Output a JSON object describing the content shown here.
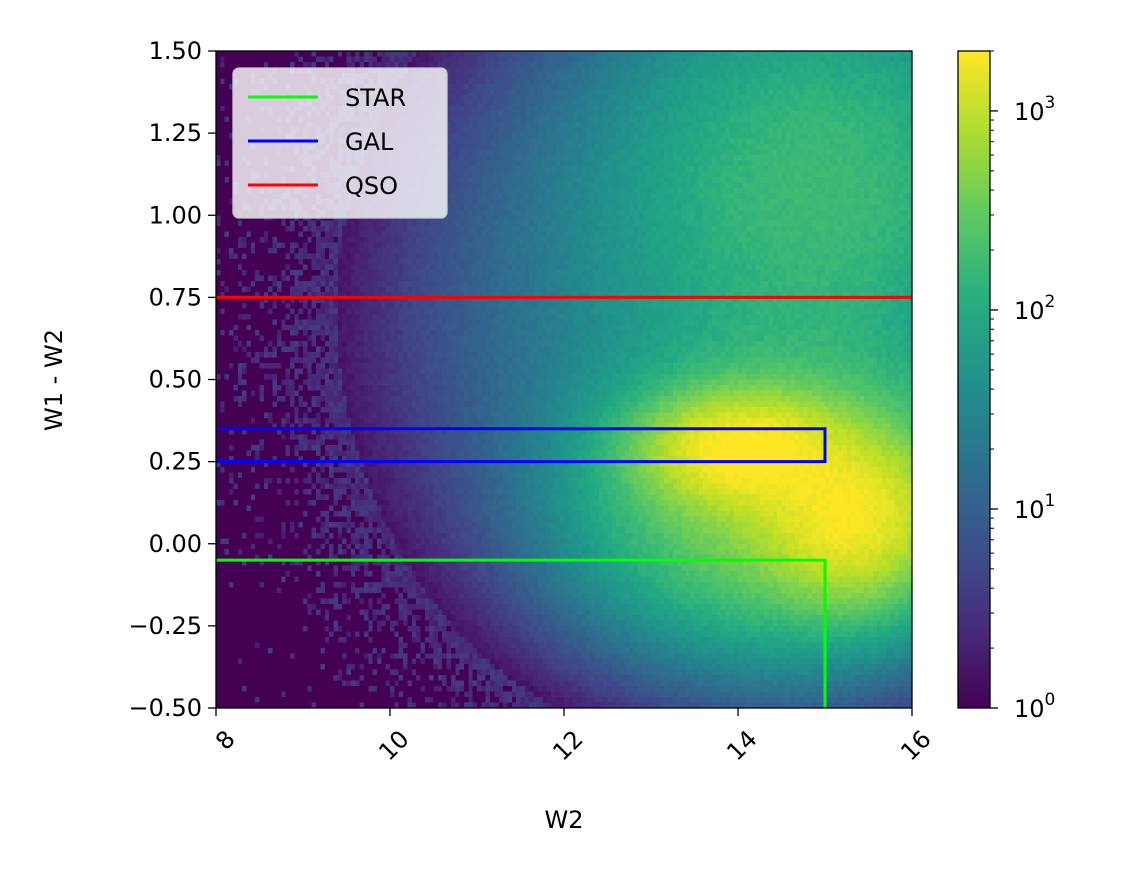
{
  "chart_data": {
    "type": "heatmap",
    "title": "",
    "xlabel": "W2",
    "ylabel": "W1 - W2",
    "xlim": [
      8,
      16
    ],
    "ylim": [
      -0.5,
      1.5
    ],
    "x_ticks": [
      8,
      10,
      12,
      14,
      16
    ],
    "y_ticks": [
      -0.5,
      -0.25,
      0.0,
      0.25,
      0.5,
      0.75,
      1.0,
      1.25,
      1.5
    ],
    "x_tick_labels": [
      "8",
      "10",
      "12",
      "14",
      "16"
    ],
    "y_tick_labels": [
      "−0.50",
      "−0.25",
      "0.00",
      "0.25",
      "0.50",
      "0.75",
      "1.00",
      "1.25",
      "1.50"
    ],
    "x_tick_rotation_deg": 45,
    "colormap": "viridis",
    "colorbar": {
      "scale": "log",
      "range": [
        1,
        2000
      ],
      "ticks": [
        1,
        10,
        100,
        1000
      ],
      "tick_labels": [
        {
          "base": "10",
          "exp": "0"
        },
        {
          "base": "10",
          "exp": "1"
        },
        {
          "base": "10",
          "exp": "2"
        },
        {
          "base": "10",
          "exp": "3"
        }
      ]
    },
    "density_background_count": 1,
    "density_components": [
      {
        "center": [
          14.1,
          0.28
        ],
        "sigma": [
          0.6,
          0.09
        ],
        "peak_count": 2000
      },
      {
        "center": [
          15.3,
          0.08
        ],
        "sigma": [
          0.55,
          0.13
        ],
        "peak_count": 1500
      },
      {
        "center": [
          14.6,
          0.15
        ],
        "sigma": [
          1.1,
          0.22
        ],
        "peak_count": 600
      },
      {
        "center": [
          15.0,
          1.1
        ],
        "sigma": [
          1.3,
          0.35
        ],
        "peak_count": 150
      },
      {
        "center": [
          14.0,
          0.7
        ],
        "sigma": [
          1.8,
          0.5
        ],
        "peak_count": 40
      }
    ],
    "legend": {
      "placement": "upper-left",
      "entries": [
        {
          "label": "STAR",
          "color": "#00ff00"
        },
        {
          "label": "GAL",
          "color": "#0000ff"
        },
        {
          "label": "QSO",
          "color": "#ff0000"
        }
      ]
    },
    "series": [
      {
        "name": "STAR",
        "color": "#00ff00",
        "x": [
          8,
          15,
          15
        ],
        "y": [
          -0.05,
          -0.05,
          -0.5
        ]
      },
      {
        "name": "GAL",
        "color": "#0000ff",
        "x": [
          8,
          15,
          15,
          8
        ],
        "y": [
          0.25,
          0.25,
          0.35,
          0.35
        ]
      },
      {
        "name": "QSO",
        "color": "#ff0000",
        "x": [
          8,
          16
        ],
        "y": [
          0.75,
          0.75
        ]
      }
    ]
  }
}
